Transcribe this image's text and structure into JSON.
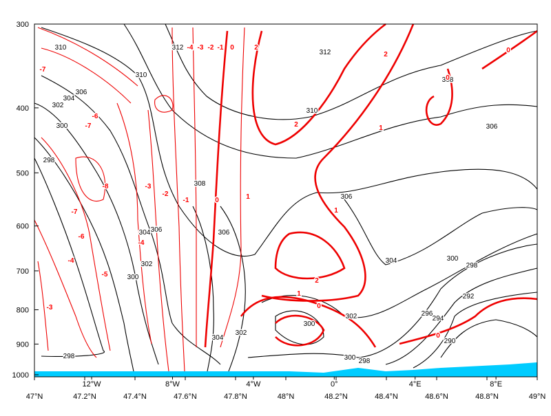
{
  "chart_data": {
    "type": "contour",
    "yscale": "log",
    "ylim": [
      1000,
      300
    ],
    "yticks": [
      300,
      400,
      500,
      600,
      700,
      800,
      900,
      1000
    ],
    "xlim": [
      47,
      49
    ],
    "xticks": [
      {
        "value": 47,
        "label": "47°N"
      },
      {
        "value": 47.2,
        "label": "47.2°N"
      },
      {
        "value": 47.4,
        "label": "47.4°N"
      },
      {
        "value": 47.6,
        "label": "47.6°N"
      },
      {
        "value": 47.8,
        "label": "47.8°N"
      },
      {
        "value": 48,
        "label": "48°N"
      },
      {
        "value": 48.2,
        "label": "48.2°N"
      },
      {
        "value": 48.4,
        "label": "48.4°N"
      },
      {
        "value": 48.6,
        "label": "48.6°N"
      },
      {
        "value": 48.8,
        "label": "48.8°N"
      },
      {
        "value": 49,
        "label": "49°N"
      }
    ],
    "x2lim": [
      -14.83,
      10.04
    ],
    "x2ticks": [
      {
        "value": -12,
        "label": "12°W"
      },
      {
        "value": -8,
        "label": "8°W"
      },
      {
        "value": -4,
        "label": "4°W"
      },
      {
        "value": 0,
        "label": "0°"
      },
      {
        "value": 4,
        "label": "4°E"
      },
      {
        "value": 8,
        "label": "8°E"
      }
    ],
    "terrain_color": "#00ccff",
    "contours": [
      {
        "color": "#000000",
        "labels": [
          310,
          312,
          312,
          308,
          310,
          306,
          304,
          302,
          300,
          298,
          306,
          310,
          308,
          306,
          306,
          304,
          306,
          302,
          300,
          304,
          300,
          298,
          296,
          294,
          292,
          290,
          302,
          300,
          304,
          302,
          300,
          298,
          298
        ]
      },
      {
        "color": "#ff0000",
        "labels": [
          -7,
          -6,
          -7,
          -8,
          -7,
          -6,
          -4,
          -5,
          -3,
          -4,
          -3,
          -2,
          -1,
          0,
          1,
          -4,
          -3,
          -2,
          -1,
          0,
          2,
          2,
          2,
          1,
          1,
          2,
          1,
          0,
          0,
          0,
          0
        ]
      }
    ]
  }
}
